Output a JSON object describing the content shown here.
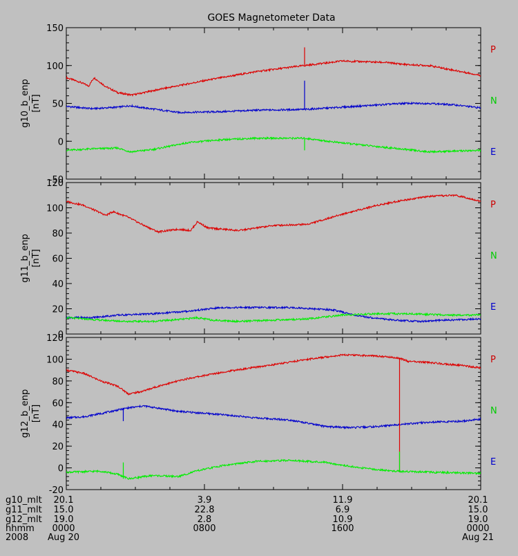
{
  "title": "GOES Magnetometer Data",
  "colors": {
    "background": "#c0c0c0",
    "axis": "#000000",
    "P": "#cc0000",
    "N": "#00cc00",
    "E": "#0000cc",
    "series_red": "#dd0000",
    "series_green": "#00ee00",
    "series_blue": "#0000cc"
  },
  "legend": [
    "P",
    "N",
    "E"
  ],
  "time_axis": {
    "rows": [
      {
        "label": "g10_mlt",
        "values": [
          "20.1",
          "3.9",
          "11.9",
          "20.1"
        ]
      },
      {
        "label": "g11_mlt",
        "values": [
          "15.0",
          "22.8",
          "6.9",
          "15.0"
        ]
      },
      {
        "label": "g12_mlt",
        "values": [
          "19.0",
          "2.8",
          "10.9",
          "19.0"
        ]
      },
      {
        "label": "hhmm",
        "values": [
          "0000",
          "0800",
          "1600",
          "0000"
        ]
      },
      {
        "label": "2008",
        "values": [
          "Aug 20",
          "",
          "",
          "Aug 21"
        ]
      }
    ],
    "tick_hours": [
      0,
      8,
      16,
      24
    ]
  },
  "chart_data": [
    {
      "type": "line",
      "ylabel": "g10_b_enp",
      "yunit": "[nT]",
      "ylim": [
        -50,
        150
      ],
      "yticks": [
        -50,
        0,
        50,
        100,
        150
      ],
      "xlim_hours": [
        0,
        24
      ],
      "series": [
        {
          "name": "P",
          "color": "#dd0000",
          "points": [
            [
              0,
              84
            ],
            [
              0.8,
              78
            ],
            [
              1.3,
              73
            ],
            [
              1.6,
              84
            ],
            [
              2.3,
              72
            ],
            [
              3.0,
              64
            ],
            [
              3.8,
              61
            ],
            [
              5.5,
              69
            ],
            [
              8,
              80
            ],
            [
              11,
              92
            ],
            [
              13.8,
              100
            ],
            [
              16,
              106
            ],
            [
              18.5,
              104
            ],
            [
              19.8,
              101
            ],
            [
              21,
              100
            ],
            [
              24,
              87
            ]
          ]
        },
        {
          "name": "E",
          "color": "#0000cc",
          "points": [
            [
              0,
              46
            ],
            [
              1.5,
              43
            ],
            [
              3,
              45
            ],
            [
              3.7,
              47
            ],
            [
              4.2,
              45
            ],
            [
              5.2,
              42
            ],
            [
              6.5,
              38
            ],
            [
              9,
              39
            ],
            [
              11,
              41
            ],
            [
              13.8,
              42
            ],
            [
              16,
              45
            ],
            [
              19.5,
              50
            ],
            [
              21,
              50
            ],
            [
              22.5,
              48
            ],
            [
              24,
              44
            ]
          ]
        },
        {
          "name": "N",
          "color": "#00ee00",
          "points": [
            [
              0,
              -12
            ],
            [
              1.5,
              -10
            ],
            [
              3,
              -9
            ],
            [
              3.7,
              -14
            ],
            [
              5,
              -11
            ],
            [
              7,
              -2
            ],
            [
              9,
              2
            ],
            [
              11,
              4
            ],
            [
              13.8,
              4
            ],
            [
              15.5,
              -1
            ],
            [
              18,
              -7
            ],
            [
              21,
              -14
            ],
            [
              24,
              -12
            ]
          ]
        }
      ],
      "spikes": [
        {
          "x": 13.8,
          "y0": 100,
          "y1": 124,
          "color": "#dd0000"
        },
        {
          "x": 13.8,
          "y0": 42,
          "y1": 80,
          "color": "#0000cc"
        },
        {
          "x": 13.8,
          "y0": 4,
          "y1": -12,
          "color": "#00ee00"
        }
      ]
    },
    {
      "type": "line",
      "ylabel": "g11_b_enp",
      "yunit": "[nT]",
      "ylim": [
        0,
        120
      ],
      "yticks": [
        0,
        20,
        40,
        60,
        80,
        100,
        120
      ],
      "xlim_hours": [
        0,
        24
      ],
      "series": [
        {
          "name": "P",
          "color": "#dd0000",
          "points": [
            [
              0,
              105
            ],
            [
              1,
              102
            ],
            [
              2.3,
              94
            ],
            [
              2.7,
              97
            ],
            [
              3.5,
              93
            ],
            [
              4.5,
              86
            ],
            [
              5.3,
              81
            ],
            [
              6.5,
              83
            ],
            [
              7.2,
              82
            ],
            [
              7.6,
              89
            ],
            [
              8.2,
              84
            ],
            [
              10,
              82
            ],
            [
              12,
              86
            ],
            [
              14,
              87
            ],
            [
              16,
              95
            ],
            [
              18,
              102
            ],
            [
              19.5,
              106
            ],
            [
              21,
              109
            ],
            [
              22.5,
              110
            ],
            [
              23.2,
              108
            ],
            [
              24,
              105
            ]
          ]
        },
        {
          "name": "E",
          "color": "#0000cc",
          "points": [
            [
              0,
              13
            ],
            [
              1.5,
              13
            ],
            [
              3,
              15
            ],
            [
              5,
              16
            ],
            [
              7,
              18
            ],
            [
              9,
              21
            ],
            [
              11,
              21
            ],
            [
              13,
              21
            ],
            [
              15.5,
              19
            ],
            [
              17,
              14
            ],
            [
              19,
              11
            ],
            [
              20.5,
              10
            ],
            [
              22,
              11
            ],
            [
              24,
              12
            ]
          ]
        },
        {
          "name": "N",
          "color": "#00ee00",
          "points": [
            [
              0,
              13
            ],
            [
              2,
              11
            ],
            [
              3.5,
              10
            ],
            [
              5,
              10
            ],
            [
              7,
              12
            ],
            [
              7.5,
              13
            ],
            [
              8.5,
              11
            ],
            [
              10,
              10
            ],
            [
              12,
              11
            ],
            [
              14,
              12
            ],
            [
              16,
              15
            ],
            [
              18,
              16
            ],
            [
              20,
              16
            ],
            [
              22,
              15
            ],
            [
              24,
              15
            ]
          ]
        }
      ],
      "spikes": []
    },
    {
      "type": "line",
      "ylabel": "g12_b_enp",
      "yunit": "[nT]",
      "ylim": [
        -20,
        120
      ],
      "yticks": [
        -20,
        0,
        20,
        40,
        60,
        80,
        100,
        120
      ],
      "xlim_hours": [
        0,
        24
      ],
      "series": [
        {
          "name": "P",
          "color": "#dd0000",
          "points": [
            [
              0,
              90
            ],
            [
              1,
              87
            ],
            [
              2,
              80
            ],
            [
              3,
              75
            ],
            [
              3.6,
              68
            ],
            [
              4.3,
              70
            ],
            [
              5.5,
              76
            ],
            [
              7,
              82
            ],
            [
              9,
              88
            ],
            [
              12,
              95
            ],
            [
              14,
              100
            ],
            [
              16,
              104
            ],
            [
              18,
              103
            ],
            [
              19.3,
              101
            ],
            [
              19.8,
              98
            ],
            [
              21,
              97
            ],
            [
              23,
              94
            ],
            [
              24,
              92
            ]
          ]
        },
        {
          "name": "E",
          "color": "#0000cc",
          "points": [
            [
              0,
              46
            ],
            [
              1,
              47
            ],
            [
              2,
              50
            ],
            [
              3.5,
              55
            ],
            [
              4.5,
              57
            ],
            [
              6.5,
              52
            ],
            [
              9,
              49
            ],
            [
              11,
              46
            ],
            [
              13,
              44
            ],
            [
              15,
              38
            ],
            [
              16.5,
              37
            ],
            [
              18,
              38
            ],
            [
              19.3,
              40
            ],
            [
              21,
              42
            ],
            [
              23,
              43
            ],
            [
              24,
              45
            ]
          ]
        },
        {
          "name": "N",
          "color": "#00ee00",
          "points": [
            [
              0,
              -4
            ],
            [
              2,
              -3
            ],
            [
              3,
              -6
            ],
            [
              3.6,
              -10
            ],
            [
              5,
              -7
            ],
            [
              6.5,
              -8
            ],
            [
              7.5,
              -3
            ],
            [
              9,
              2
            ],
            [
              11,
              6
            ],
            [
              13,
              7
            ],
            [
              15,
              5
            ],
            [
              17,
              0
            ],
            [
              19,
              -3
            ],
            [
              21,
              -4
            ],
            [
              24,
              -5
            ]
          ]
        }
      ],
      "spikes": [
        {
          "x": 3.3,
          "y0": 55,
          "y1": 43,
          "color": "#0000cc"
        },
        {
          "x": 3.3,
          "y0": -10,
          "y1": 5,
          "color": "#00ee00"
        },
        {
          "x": 19.3,
          "y0": 101,
          "y1": -4,
          "color": "#dd0000"
        },
        {
          "x": 19.3,
          "y0": -4,
          "y1": 15,
          "color": "#00ee00"
        }
      ]
    }
  ]
}
